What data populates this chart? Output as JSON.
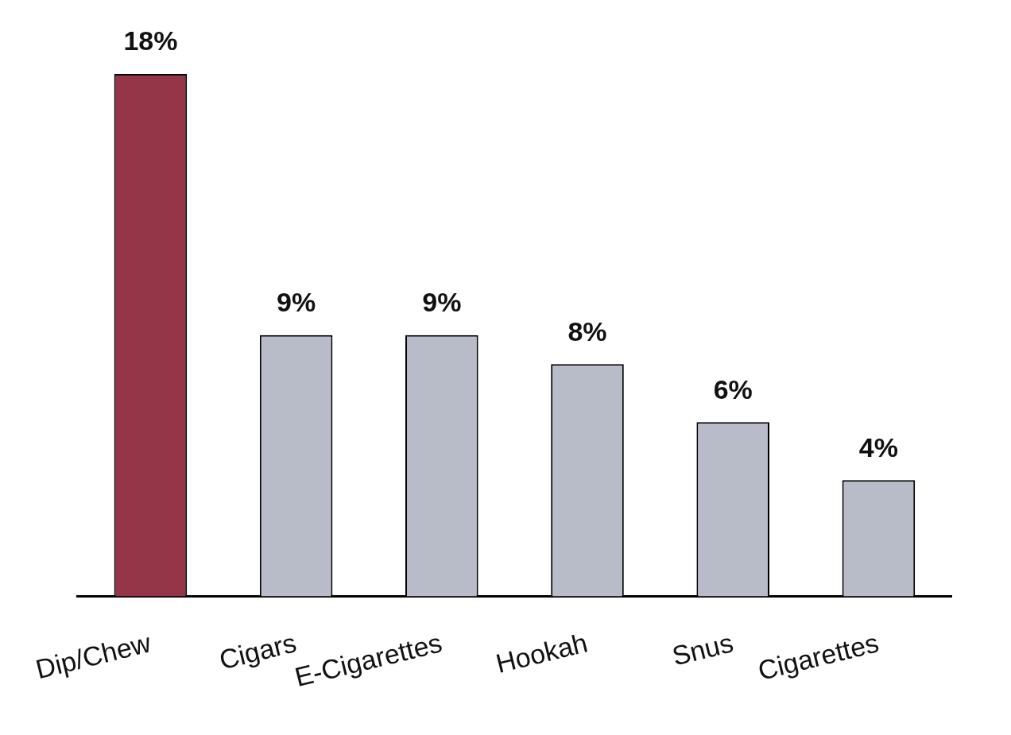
{
  "chart_data": {
    "type": "bar",
    "categories": [
      "Dip/Chew",
      "Cigars",
      "E-Cigarettes",
      "Hookah",
      "Snus",
      "Cigarettes"
    ],
    "values": [
      18,
      9,
      9,
      8,
      6,
      4
    ],
    "colors": [
      "#943548",
      "#b8bcc8",
      "#b8bcc8",
      "#b8bcc8",
      "#b8bcc8",
      "#b8bcc8"
    ],
    "value_labels": [
      "18%",
      "9%",
      "9%",
      "8%",
      "6%",
      "4%"
    ],
    "grid": false,
    "legend": false
  }
}
